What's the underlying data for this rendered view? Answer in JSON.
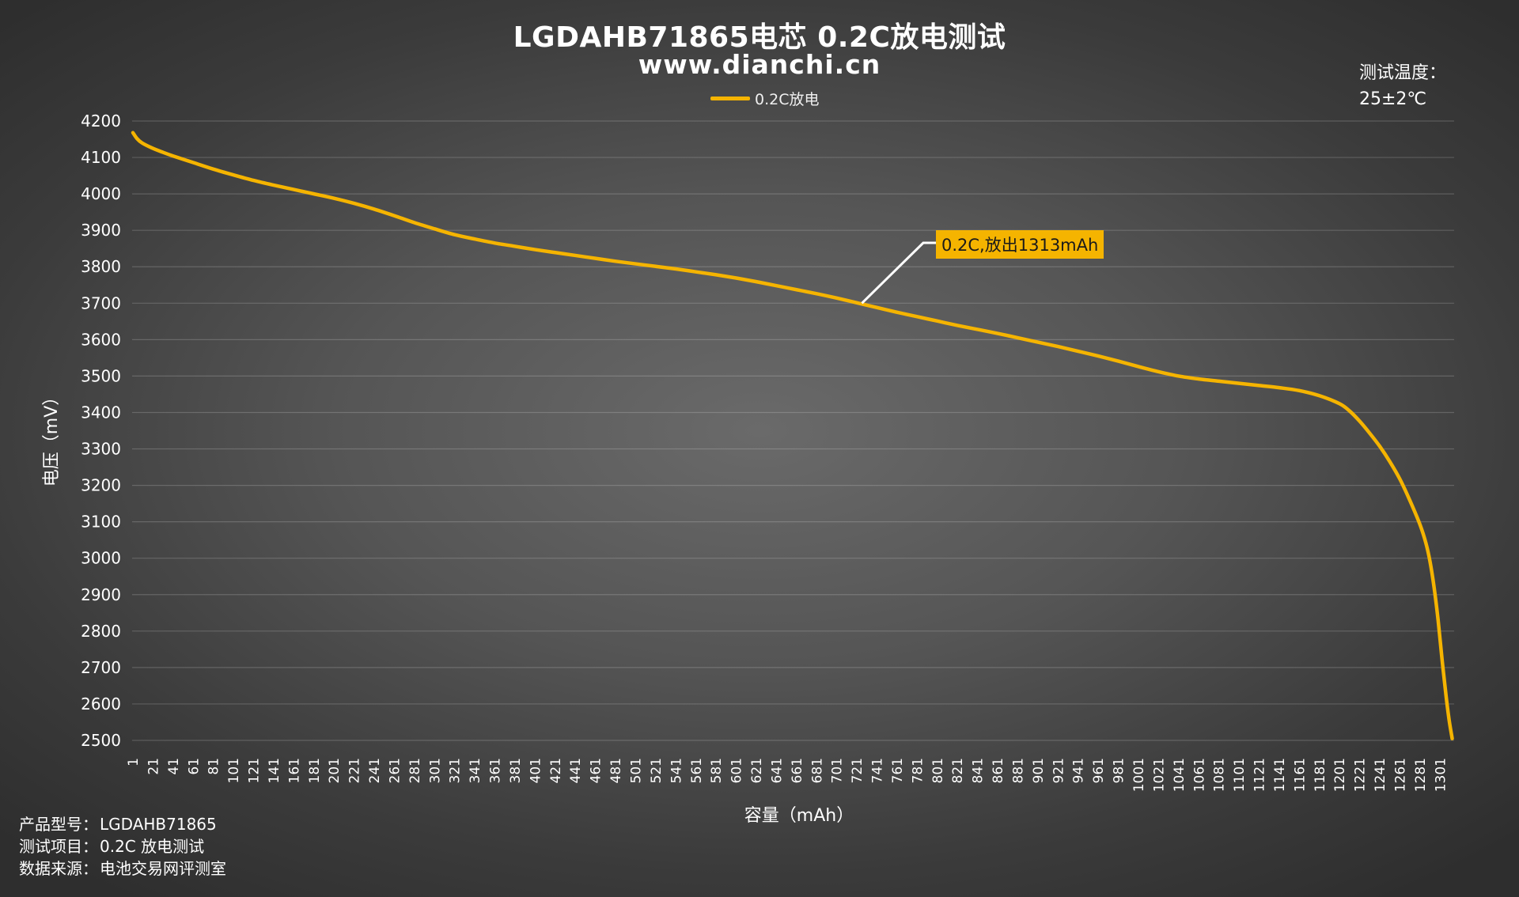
{
  "chart_data": {
    "type": "line",
    "title": "LGDAHB71865电芯 0.2C放电测试",
    "subtitle": "www.dianchi.cn",
    "xlabel": "容量（mAh）",
    "ylabel": "电压（mV）",
    "ylim": [
      2500,
      4200
    ],
    "yticks": [
      4200,
      4100,
      4000,
      3900,
      3800,
      3700,
      3600,
      3500,
      3400,
      3300,
      3200,
      3100,
      3000,
      2900,
      2800,
      2700,
      2600,
      2500
    ],
    "xticks": [
      1,
      21,
      41,
      61,
      81,
      101,
      121,
      141,
      161,
      181,
      201,
      221,
      241,
      261,
      281,
      301,
      321,
      341,
      361,
      381,
      401,
      421,
      441,
      461,
      481,
      501,
      521,
      541,
      561,
      581,
      601,
      621,
      641,
      661,
      681,
      701,
      721,
      741,
      761,
      781,
      801,
      821,
      841,
      861,
      881,
      901,
      921,
      941,
      961,
      981,
      1001,
      1021,
      1041,
      1061,
      1081,
      1101,
      1121,
      1141,
      1161,
      1181,
      1201,
      1221,
      1241,
      1261,
      1281,
      1301
    ],
    "xlim": [
      1,
      1313
    ],
    "grid": true,
    "legend_position": "top-center",
    "series": [
      {
        "name": "0.2C放电",
        "color": "#f5b400",
        "points": [
          [
            1,
            4168
          ],
          [
            5,
            4152
          ],
          [
            10,
            4140
          ],
          [
            20,
            4126
          ],
          [
            30,
            4115
          ],
          [
            41,
            4104
          ],
          [
            61,
            4086
          ],
          [
            81,
            4068
          ],
          [
            101,
            4052
          ],
          [
            121,
            4037
          ],
          [
            141,
            4024
          ],
          [
            161,
            4012
          ],
          [
            181,
            4000
          ],
          [
            201,
            3988
          ],
          [
            221,
            3974
          ],
          [
            241,
            3958
          ],
          [
            261,
            3940
          ],
          [
            281,
            3921
          ],
          [
            301,
            3904
          ],
          [
            321,
            3888
          ],
          [
            341,
            3876
          ],
          [
            361,
            3865
          ],
          [
            381,
            3856
          ],
          [
            401,
            3847
          ],
          [
            421,
            3839
          ],
          [
            441,
            3831
          ],
          [
            461,
            3823
          ],
          [
            481,
            3815
          ],
          [
            501,
            3808
          ],
          [
            521,
            3801
          ],
          [
            541,
            3794
          ],
          [
            561,
            3786
          ],
          [
            581,
            3778
          ],
          [
            601,
            3769
          ],
          [
            621,
            3759
          ],
          [
            641,
            3748
          ],
          [
            661,
            3737
          ],
          [
            681,
            3726
          ],
          [
            701,
            3714
          ],
          [
            721,
            3701
          ],
          [
            741,
            3688
          ],
          [
            761,
            3675
          ],
          [
            781,
            3663
          ],
          [
            801,
            3651
          ],
          [
            821,
            3639
          ],
          [
            841,
            3628
          ],
          [
            861,
            3617
          ],
          [
            881,
            3605
          ],
          [
            901,
            3593
          ],
          [
            921,
            3581
          ],
          [
            941,
            3568
          ],
          [
            961,
            3555
          ],
          [
            981,
            3541
          ],
          [
            1001,
            3526
          ],
          [
            1021,
            3512
          ],
          [
            1041,
            3500
          ],
          [
            1061,
            3492
          ],
          [
            1081,
            3486
          ],
          [
            1101,
            3480
          ],
          [
            1121,
            3474
          ],
          [
            1141,
            3468
          ],
          [
            1161,
            3460
          ],
          [
            1181,
            3446
          ],
          [
            1201,
            3424
          ],
          [
            1211,
            3404
          ],
          [
            1221,
            3376
          ],
          [
            1231,
            3343
          ],
          [
            1241,
            3307
          ],
          [
            1251,
            3265
          ],
          [
            1261,
            3217
          ],
          [
            1271,
            3158
          ],
          [
            1281,
            3092
          ],
          [
            1287,
            3040
          ],
          [
            1291,
            2990
          ],
          [
            1295,
            2920
          ],
          [
            1299,
            2830
          ],
          [
            1303,
            2720
          ],
          [
            1307,
            2620
          ],
          [
            1310,
            2555
          ],
          [
            1313,
            2505
          ]
        ]
      }
    ],
    "annotations": [
      {
        "text": "0.2C,放出1313mAh",
        "x": 726,
        "y": 3700
      }
    ]
  },
  "side_note": {
    "label": "测试温度：",
    "value": "25±2℃"
  },
  "footer": {
    "model_label": "产品型号：",
    "model_value": "LGDAHB71865",
    "item_label": "测试项目：",
    "item_value": "0.2C 放电测试",
    "source_label": "数据来源：",
    "source_value": "电池交易网评测室"
  }
}
